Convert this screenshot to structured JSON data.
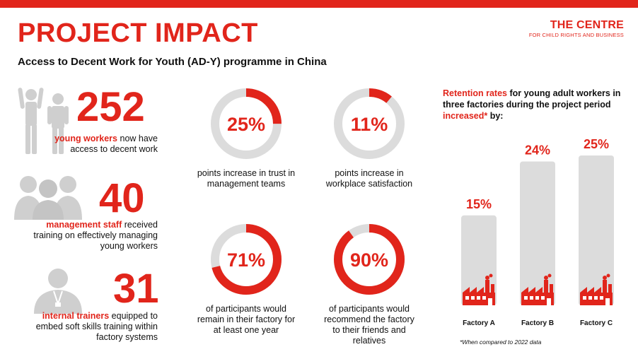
{
  "header": {
    "title": "PROJECT IMPACT",
    "subtitle": "Access to Decent Work for Youth (AD-Y) programme in China",
    "logo_main": "THE CENTRE",
    "logo_sub": "FOR CHILD RIGHTS AND BUSINESS"
  },
  "stats": [
    {
      "number": "252",
      "highlight": "young workers",
      "rest1": " now have",
      "rest2": "access to decent work"
    },
    {
      "number": "40",
      "highlight": "management staff",
      "rest1": " received",
      "rest2": "training on effectively managing",
      "rest3": "young workers"
    },
    {
      "number": "31",
      "highlight": "internal trainers",
      "rest1": " equipped to",
      "rest2": "embed soft skills training within",
      "rest3": "factory systems"
    }
  ],
  "donuts": [
    {
      "label": "25%",
      "value": 25,
      "caption1": "points increase in trust in",
      "caption2": "management teams"
    },
    {
      "label": "11%",
      "value": 11,
      "caption1": "points increase in",
      "caption2": "workplace satisfaction"
    },
    {
      "label": "71%",
      "value": 71,
      "caption1": "of participants would",
      "caption2": "remain in their factory for",
      "caption3": "at least one year"
    },
    {
      "label": "90%",
      "value": 90,
      "caption1": "of participants would",
      "caption2": "recommend the factory",
      "caption3": "to their friends and",
      "caption4": "relatives"
    }
  ],
  "colors": {
    "accent": "#e1251b",
    "track": "#dcdcdc",
    "silhouette": "#cfcfcf"
  },
  "chart_data": {
    "type": "bar",
    "title_parts": [
      "Retention rates",
      " for young adult workers in three factories during the project period ",
      "increased*",
      " by:"
    ],
    "categories": [
      "Factory A",
      "Factory B",
      "Factory C"
    ],
    "values": [
      15,
      24,
      25
    ],
    "value_labels": [
      "15%",
      "24%",
      "25%"
    ],
    "ylim": [
      0,
      25
    ],
    "footnote": "*When compared to 2022 data"
  }
}
